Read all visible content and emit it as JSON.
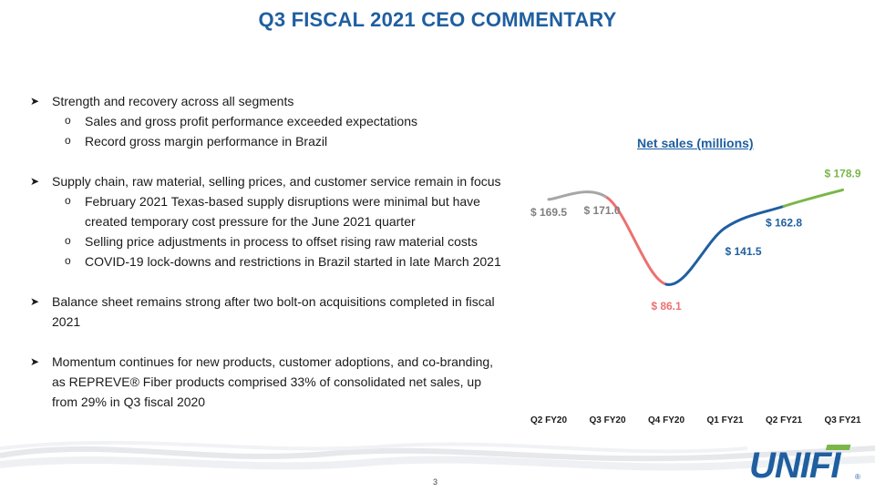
{
  "title": "Q3 FISCAL 2021 CEO COMMENTARY",
  "bullets": [
    {
      "text": "Strength and recovery across all segments",
      "subs": [
        "Sales and gross profit performance exceeded expectations",
        "Record gross margin performance in Brazil"
      ]
    },
    {
      "text": "Supply chain, raw material, selling prices, and customer service remain in focus",
      "subs": [
        "February 2021 Texas-based supply disruptions were minimal but have created temporary cost pressure for the June 2021 quarter",
        "Selling price adjustments in process to offset rising raw material costs",
        "COVID-19 lock-downs and restrictions in Brazil started in late March 2021"
      ]
    },
    {
      "text": "Balance sheet remains strong after two bolt-on acquisitions completed in fiscal 2021",
      "subs": []
    },
    {
      "text": "Momentum continues for new products, customer adoptions, and co-branding, as REPREVE® Fiber products comprised 33% of consolidated net sales, up from 29% in Q3 fiscal 2020",
      "subs": []
    }
  ],
  "chart_data": {
    "type": "line",
    "title": "Net sales (millions)",
    "categories": [
      "Q2 FY20",
      "Q3 FY20",
      "Q4 FY20",
      "Q1 FY21",
      "Q2 FY21",
      "Q3 FY21"
    ],
    "values": [
      169.5,
      171.0,
      86.1,
      141.5,
      162.8,
      178.9
    ],
    "data_labels": [
      "$ 169.5",
      "$ 171.0",
      "$ 86.1",
      "$ 141.5",
      "$ 162.8",
      "$ 178.9"
    ],
    "segment_colors": [
      "#a6a6a6",
      "#ed7070",
      "#1f5fa0",
      "#1f5fa0",
      "#7ab648"
    ],
    "label_colors": [
      "#808080",
      "#808080",
      "#ed7070",
      "#1f5fa0",
      "#1f5fa0",
      "#7ab648"
    ],
    "ylim": [
      70,
      190
    ],
    "grid": false,
    "smooth": true
  },
  "page_number": "3",
  "logo": {
    "text": "UNIFI",
    "color": "#1f5fa0",
    "accent": "#7ab648",
    "reg": "®"
  }
}
